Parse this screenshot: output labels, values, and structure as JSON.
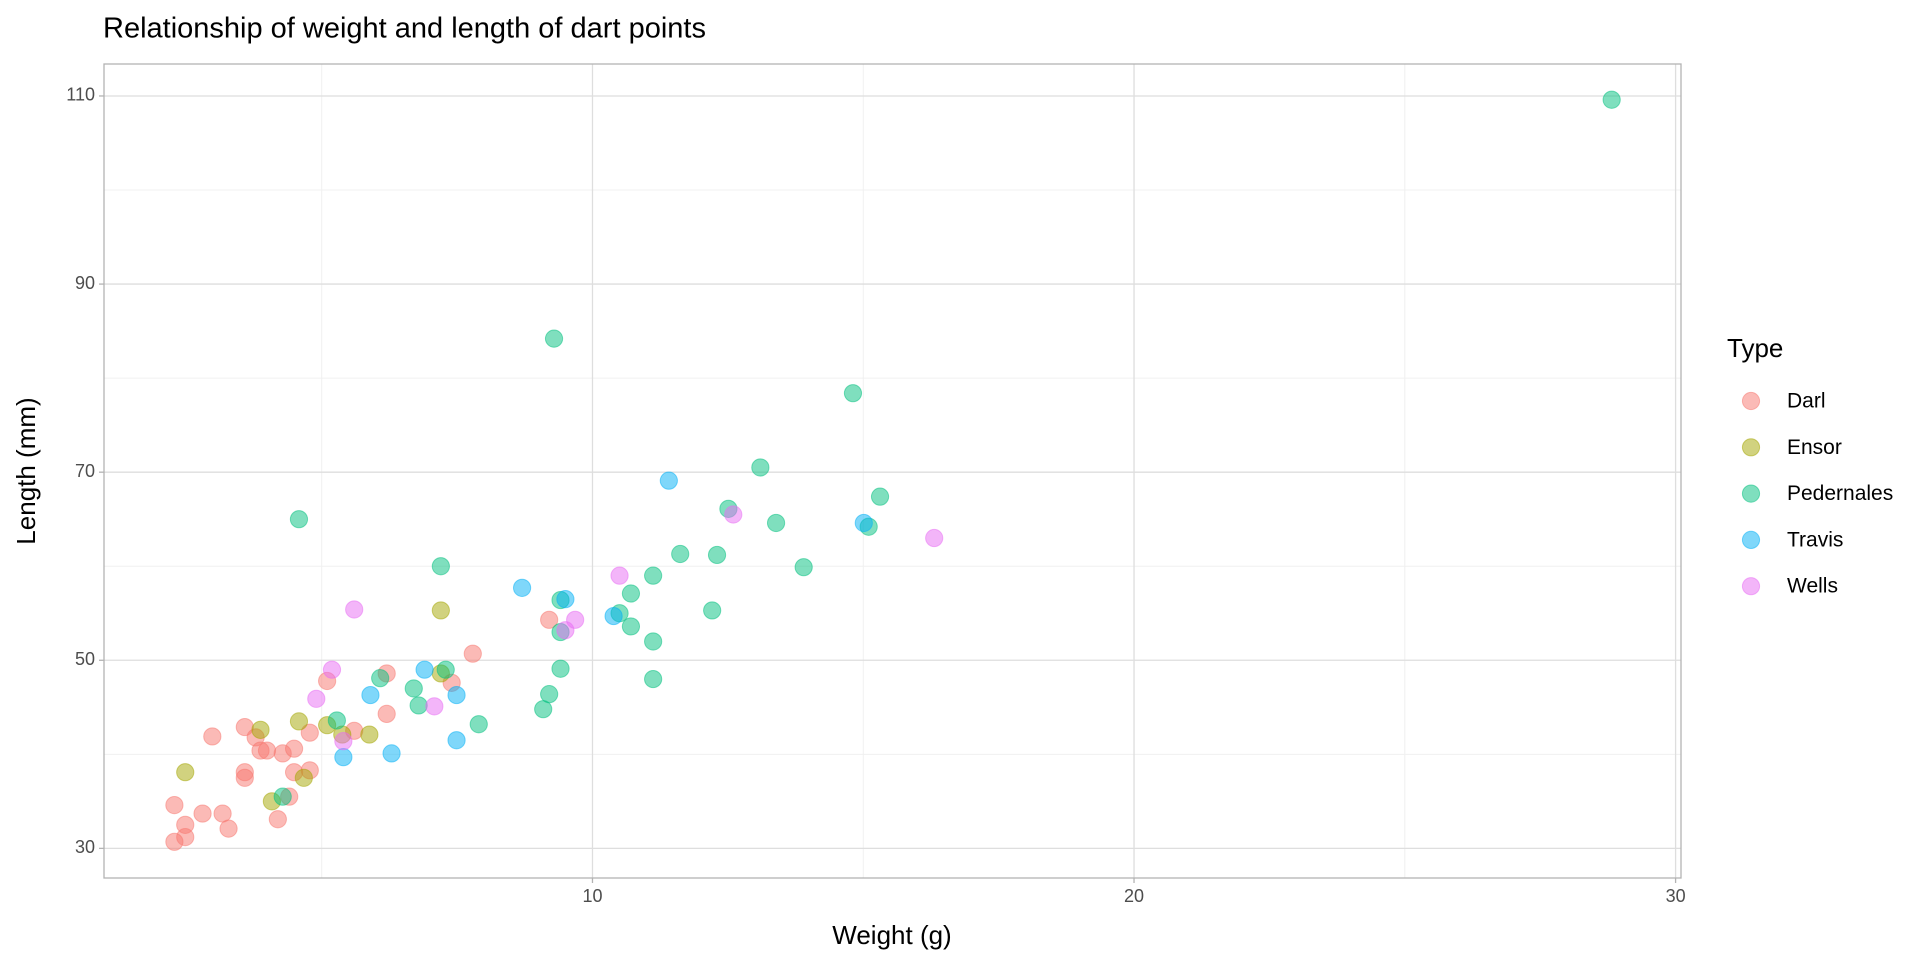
{
  "chart_data": {
    "type": "scatter",
    "title": "Relationship of weight and length of dart points",
    "x_label": "Weight (g)",
    "y_label": "Length (mm)",
    "legend_title": "Type",
    "legend": "right",
    "grid": true,
    "alpha": 0.5,
    "xlim": [
      0.98,
      30.1
    ],
    "ylim": [
      26.85,
      113.4
    ],
    "xticks": [
      10,
      20,
      30
    ],
    "yticks": [
      30,
      50,
      70,
      90,
      110
    ],
    "xminor": [
      5,
      15,
      25
    ],
    "yminor": [
      40,
      60,
      80,
      100
    ],
    "series": [
      {
        "name": "Darl",
        "color": "#F8766D",
        "x": [
          2.28,
          2.48,
          2.48,
          2.8,
          2.98,
          3.17,
          3.28,
          2.28,
          3.58,
          3.58,
          3.58,
          3.78,
          3.87,
          3.99,
          4.19,
          4.28,
          4.4,
          4.49,
          4.49,
          4.78,
          4.78,
          5.1,
          5.6,
          6.2,
          6.2,
          7.4,
          7.79,
          9.2
        ],
        "values": [
          34.6,
          31.2,
          32.5,
          33.7,
          41.9,
          33.7,
          32.1,
          30.7,
          42.9,
          38.1,
          37.5,
          41.8,
          40.4,
          40.4,
          33.1,
          40.1,
          35.5,
          40.6,
          38.1,
          42.3,
          38.3,
          47.8,
          42.5,
          48.6,
          44.3,
          47.6,
          50.7,
          54.3
        ]
      },
      {
        "name": "Ensor",
        "color": "#A3A500",
        "x": [
          2.48,
          3.87,
          4.08,
          4.58,
          4.67,
          5.1,
          5.38,
          5.88,
          7.2,
          7.2
        ],
        "values": [
          38.1,
          42.6,
          35.0,
          43.5,
          37.5,
          43.1,
          42.1,
          42.1,
          55.3,
          48.6
        ]
      },
      {
        "name": "Pedernales",
        "color": "#00BF7D",
        "x": [
          4.28,
          4.58,
          5.28,
          6.08,
          6.7,
          6.79,
          7.2,
          7.29,
          7.9,
          9.09,
          9.2,
          9.29,
          9.41,
          9.41,
          9.41,
          10.5,
          10.71,
          10.71,
          11.12,
          11.12,
          11.12,
          11.62,
          12.21,
          12.3,
          12.51,
          13.1,
          13.39,
          13.9,
          14.81,
          15.1,
          15.31,
          28.82
        ],
        "values": [
          35.5,
          65.0,
          43.6,
          48.1,
          47.0,
          45.2,
          60.0,
          49.0,
          43.2,
          44.8,
          46.4,
          84.2,
          56.4,
          53.0,
          49.1,
          55.0,
          57.1,
          53.6,
          59.0,
          52.0,
          48.0,
          61.3,
          55.3,
          61.2,
          66.1,
          70.5,
          64.6,
          59.9,
          78.4,
          64.2,
          67.4,
          109.6
        ]
      },
      {
        "name": "Travis",
        "color": "#00B0F6",
        "x": [
          5.4,
          5.9,
          6.29,
          6.9,
          7.49,
          7.49,
          8.7,
          9.5,
          10.39,
          11.41,
          15.01
        ],
        "values": [
          39.7,
          46.3,
          40.1,
          49.0,
          46.3,
          41.5,
          57.7,
          56.5,
          54.7,
          69.1,
          64.6
        ]
      },
      {
        "name": "Wells",
        "color": "#E76BF3",
        "x": [
          4.9,
          5.19,
          5.4,
          5.6,
          7.08,
          9.5,
          9.68,
          10.5,
          12.6,
          16.31
        ],
        "values": [
          45.9,
          49.0,
          41.4,
          55.4,
          45.1,
          53.2,
          54.3,
          59.0,
          65.5,
          63.0
        ]
      }
    ]
  }
}
